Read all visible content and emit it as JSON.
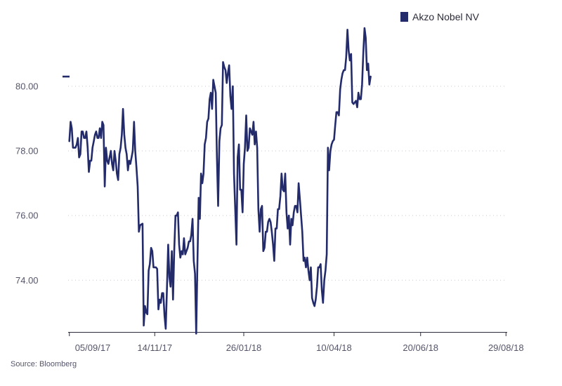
{
  "chart_data": {
    "type": "line",
    "title": "",
    "xlabel": "",
    "ylabel": "",
    "source": "Source: Bloomberg",
    "legend": {
      "position": "top-right",
      "entries": [
        "Akzo Nobel NV"
      ]
    },
    "ylim": [
      72.4,
      81.8
    ],
    "xlim_day": [
      -1,
      359
    ],
    "yticks": [
      {
        "value": 74,
        "label": "74.00"
      },
      {
        "value": 76,
        "label": "76.00"
      },
      {
        "value": 78,
        "label": "78.00"
      },
      {
        "value": 80,
        "label": "80.00"
      }
    ],
    "xticks": [
      {
        "day": 0,
        "label": "05/09/17"
      },
      {
        "day": 70,
        "label": "14/11/17"
      },
      {
        "day": 143,
        "label": "26/01/18"
      },
      {
        "day": 217,
        "label": "10/04/18"
      },
      {
        "day": 288,
        "label": "20/06/18"
      },
      {
        "day": 358,
        "label": "29/08/18"
      }
    ],
    "last_value": 80.3,
    "colors": {
      "series": "#232b6b",
      "grid": "#c9c9d2",
      "axis": "#2b2b3a",
      "text": "#55556a"
    },
    "series": [
      {
        "name": "Akzo Nobel NV",
        "points": [
          [
            0,
            78.3
          ],
          [
            1,
            78.9
          ],
          [
            2,
            78.7
          ],
          [
            3,
            78.1
          ],
          [
            5,
            78.1
          ],
          [
            6,
            78.2
          ],
          [
            7,
            78.4
          ],
          [
            8,
            77.8
          ],
          [
            9,
            77.9
          ],
          [
            10,
            78.6
          ],
          [
            11,
            78.6
          ],
          [
            12,
            78.4
          ],
          [
            13,
            78.4
          ],
          [
            14,
            78.6
          ],
          [
            15,
            78.1
          ],
          [
            16,
            77.35
          ],
          [
            17,
            77.7
          ],
          [
            18,
            77.7
          ],
          [
            19,
            78.1
          ],
          [
            20,
            78.3
          ],
          [
            21,
            78.5
          ],
          [
            22,
            78.6
          ],
          [
            23,
            78.4
          ],
          [
            24,
            78.4
          ],
          [
            25,
            78.7
          ],
          [
            26,
            78.4
          ],
          [
            27,
            78.9
          ],
          [
            28,
            78.8
          ],
          [
            29,
            76.9
          ],
          [
            30,
            78.1
          ],
          [
            31,
            77.7
          ],
          [
            32,
            77.6
          ],
          [
            33,
            77.8
          ],
          [
            34,
            78.0
          ],
          [
            35,
            77.6
          ],
          [
            36,
            77.4
          ],
          [
            37,
            78.0
          ],
          [
            38,
            77.7
          ],
          [
            39,
            77.3
          ],
          [
            40,
            77.1
          ],
          [
            41,
            77.9
          ],
          [
            42,
            78.1
          ],
          [
            43,
            78.5
          ],
          [
            44,
            79.3
          ],
          [
            45,
            78.5
          ],
          [
            46,
            78.1
          ],
          [
            47,
            77.9
          ],
          [
            48,
            77.4
          ],
          [
            49,
            77.7
          ],
          [
            50,
            77.6
          ],
          [
            51,
            77.8
          ],
          [
            52,
            78.0
          ],
          [
            53,
            78.9
          ],
          [
            54,
            78.0
          ],
          [
            55,
            77.5
          ],
          [
            56,
            76.9
          ],
          [
            57,
            75.5
          ],
          [
            58,
            75.7
          ],
          [
            60,
            75.75
          ],
          [
            61,
            72.6
          ],
          [
            62,
            73.2
          ],
          [
            63,
            73.0
          ],
          [
            64,
            72.95
          ],
          [
            65,
            74.3
          ],
          [
            66,
            74.5
          ],
          [
            67,
            75.0
          ],
          [
            68,
            74.9
          ],
          [
            69,
            74.4
          ],
          [
            70,
            74.4
          ],
          [
            71,
            74.4
          ],
          [
            72,
            74.35
          ],
          [
            73,
            73.1
          ],
          [
            74,
            73.4
          ],
          [
            75,
            73.3
          ],
          [
            76,
            73.6
          ],
          [
            77,
            73.6
          ],
          [
            78,
            72.9
          ],
          [
            79,
            72.5
          ],
          [
            80,
            73.7
          ],
          [
            81,
            75.1
          ],
          [
            82,
            74.1
          ],
          [
            83,
            73.8
          ],
          [
            84,
            74.9
          ],
          [
            85,
            73.4
          ],
          [
            86,
            74.9
          ],
          [
            87,
            76.0
          ],
          [
            88,
            76.0
          ],
          [
            89,
            76.1
          ],
          [
            90,
            75.1
          ],
          [
            91,
            74.7
          ],
          [
            92,
            74.9
          ],
          [
            93,
            74.8
          ],
          [
            94,
            75.3
          ],
          [
            95,
            74.8
          ],
          [
            96,
            74.9
          ],
          [
            97,
            75.0
          ],
          [
            98,
            75.2
          ],
          [
            99,
            75.2
          ],
          [
            100,
            75.4
          ],
          [
            101,
            75.9
          ],
          [
            102,
            74.6
          ],
          [
            103,
            74.2
          ],
          [
            104,
            72.35
          ],
          [
            105,
            74.5
          ],
          [
            106,
            76.55
          ],
          [
            107,
            75.9
          ],
          [
            108,
            77.3
          ],
          [
            109,
            77.0
          ],
          [
            110,
            77.3
          ],
          [
            111,
            78.2
          ],
          [
            112,
            78.4
          ],
          [
            113,
            78.9
          ],
          [
            114,
            79.0
          ],
          [
            115,
            79.6
          ],
          [
            116,
            79.8
          ],
          [
            117,
            79.3
          ],
          [
            118,
            80.2
          ],
          [
            119,
            80.0
          ],
          [
            120,
            79.8
          ],
          [
            121,
            77.8
          ],
          [
            122,
            76.3
          ],
          [
            123,
            78.3
          ],
          [
            124,
            78.7
          ],
          [
            125,
            78.8
          ],
          [
            126,
            80.75
          ],
          [
            127,
            80.6
          ],
          [
            128,
            80.5
          ],
          [
            129,
            80.1
          ],
          [
            130,
            80.4
          ],
          [
            131,
            80.65
          ],
          [
            132,
            79.7
          ],
          [
            133,
            79.3
          ],
          [
            134,
            80.0
          ],
          [
            135,
            77.3
          ],
          [
            137,
            75.1
          ],
          [
            138,
            77.8
          ],
          [
            139,
            78.2
          ],
          [
            140,
            76.8
          ],
          [
            141,
            76.8
          ],
          [
            142,
            76.1
          ],
          [
            143,
            77.6
          ],
          [
            144,
            78.1
          ],
          [
            145,
            79.1
          ],
          [
            146,
            78.0
          ],
          [
            147,
            78.1
          ],
          [
            148,
            78.7
          ],
          [
            149,
            78.6
          ],
          [
            150,
            78.5
          ],
          [
            151,
            78.9
          ],
          [
            152,
            78.2
          ],
          [
            153,
            78.6
          ],
          [
            154,
            78.1
          ],
          [
            155,
            76.2
          ],
          [
            156,
            75.5
          ],
          [
            157,
            76.2
          ],
          [
            158,
            76.3
          ],
          [
            159,
            74.9
          ],
          [
            160,
            75.0
          ],
          [
            161,
            75.5
          ],
          [
            162,
            75.5
          ],
          [
            163,
            75.8
          ],
          [
            164,
            75.9
          ],
          [
            165,
            75.8
          ],
          [
            166,
            75.5
          ],
          [
            167,
            75.1
          ],
          [
            168,
            74.6
          ],
          [
            169,
            75.6
          ],
          [
            170,
            75.6
          ],
          [
            171,
            76.2
          ],
          [
            172,
            76.2
          ],
          [
            173,
            76.6
          ],
          [
            174,
            77.3
          ],
          [
            175,
            76.8
          ],
          [
            176,
            76.75
          ],
          [
            177,
            77.3
          ],
          [
            178,
            76.1
          ],
          [
            179,
            75.6
          ],
          [
            180,
            76.0
          ],
          [
            181,
            75.1
          ],
          [
            182,
            75.9
          ],
          [
            183,
            75.7
          ],
          [
            184,
            76.1
          ],
          [
            185,
            76.3
          ],
          [
            186,
            76.3
          ],
          [
            187,
            76.1
          ],
          [
            188,
            77.0
          ],
          [
            189,
            76.5
          ],
          [
            190,
            76.0
          ],
          [
            191,
            75.5
          ],
          [
            192,
            74.6
          ],
          [
            193,
            74.7
          ],
          [
            194,
            74.4
          ],
          [
            195,
            74.7
          ],
          [
            196,
            74.3
          ],
          [
            197,
            74.0
          ],
          [
            198,
            74.4
          ],
          [
            199,
            73.45
          ],
          [
            200,
            73.3
          ],
          [
            201,
            73.2
          ],
          [
            202,
            73.4
          ],
          [
            203,
            73.8
          ],
          [
            204,
            74.4
          ],
          [
            205,
            74.4
          ],
          [
            206,
            74.5
          ],
          [
            207,
            73.7
          ],
          [
            208,
            73.3
          ],
          [
            209,
            74.0
          ],
          [
            210,
            74.3
          ],
          [
            211,
            74.8
          ],
          [
            212,
            78.1
          ],
          [
            213,
            77.4
          ],
          [
            214,
            78.0
          ],
          [
            215,
            78.2
          ],
          [
            216,
            78.3
          ],
          [
            217,
            78.35
          ],
          [
            218,
            78.8
          ],
          [
            219,
            79.2
          ],
          [
            220,
            79.2
          ],
          [
            221,
            79.1
          ],
          [
            222,
            79.9
          ],
          [
            223,
            80.2
          ],
          [
            224,
            80.4
          ],
          [
            225,
            80.5
          ],
          [
            226,
            80.5
          ],
          [
            227,
            80.9
          ],
          [
            228,
            81.75
          ],
          [
            229,
            81.1
          ],
          [
            230,
            80.8
          ],
          [
            231,
            81.0
          ],
          [
            232,
            79.5
          ],
          [
            233,
            79.45
          ],
          [
            234,
            79.5
          ],
          [
            235,
            79.55
          ],
          [
            236,
            79.35
          ],
          [
            237,
            79.8
          ],
          [
            238,
            79.6
          ],
          [
            239,
            79.6
          ],
          [
            240,
            80.05
          ],
          [
            241,
            81.0
          ],
          [
            242,
            81.8
          ],
          [
            243,
            81.5
          ],
          [
            244,
            80.5
          ],
          [
            245,
            80.7
          ],
          [
            246,
            80.05
          ],
          [
            247,
            80.3
          ]
        ]
      }
    ]
  }
}
